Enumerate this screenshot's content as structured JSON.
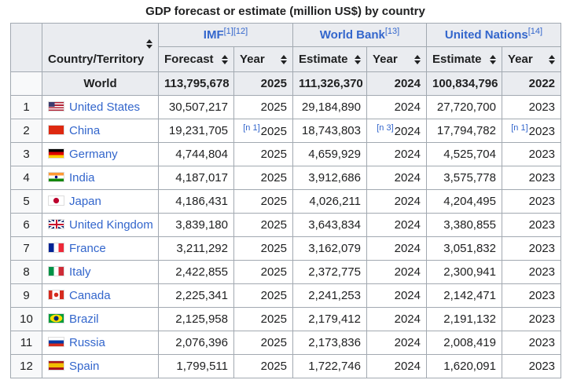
{
  "caption": "GDP forecast or estimate (million US$) by country",
  "header": {
    "country": "Country/Territory",
    "groups": [
      {
        "label": "IMF",
        "refs": "[1][12]"
      },
      {
        "label": "World Bank",
        "refs": "[13]"
      },
      {
        "label": "United Nations",
        "refs": "[14]"
      }
    ],
    "sub": [
      "Forecast",
      "Year",
      "Estimate",
      "Year",
      "Estimate",
      "Year"
    ]
  },
  "world": {
    "name": "World",
    "values": [
      "113,795,678",
      "2025",
      "111,326,370",
      "2024",
      "100,834,796",
      "2022"
    ]
  },
  "rows": [
    {
      "rank": 1,
      "country": "United States",
      "values": [
        "30,507,217",
        "2025",
        "29,184,890",
        "2024",
        "27,720,700",
        "2023"
      ]
    },
    {
      "rank": 2,
      "country": "China",
      "values": [
        "19,231,705",
        "2025",
        "18,743,803",
        "2024",
        "17,794,782",
        "2023"
      ],
      "notes": {
        "1": "[n 1]",
        "3": "[n 3]",
        "5": "[n 1]"
      }
    },
    {
      "rank": 3,
      "country": "Germany",
      "values": [
        "4,744,804",
        "2025",
        "4,659,929",
        "2024",
        "4,525,704",
        "2023"
      ]
    },
    {
      "rank": 4,
      "country": "India",
      "values": [
        "4,187,017",
        "2025",
        "3,912,686",
        "2024",
        "3,575,778",
        "2023"
      ]
    },
    {
      "rank": 5,
      "country": "Japan",
      "values": [
        "4,186,431",
        "2025",
        "4,026,211",
        "2024",
        "4,204,495",
        "2023"
      ]
    },
    {
      "rank": 6,
      "country": "United Kingdom",
      "values": [
        "3,839,180",
        "2025",
        "3,643,834",
        "2024",
        "3,380,855",
        "2023"
      ]
    },
    {
      "rank": 7,
      "country": "France",
      "values": [
        "3,211,292",
        "2025",
        "3,162,079",
        "2024",
        "3,051,832",
        "2023"
      ]
    },
    {
      "rank": 8,
      "country": "Italy",
      "values": [
        "2,422,855",
        "2025",
        "2,372,775",
        "2024",
        "2,300,941",
        "2023"
      ]
    },
    {
      "rank": 9,
      "country": "Canada",
      "values": [
        "2,225,341",
        "2025",
        "2,241,253",
        "2024",
        "2,142,471",
        "2023"
      ]
    },
    {
      "rank": 10,
      "country": "Brazil",
      "values": [
        "2,125,958",
        "2025",
        "2,179,412",
        "2024",
        "2,191,132",
        "2023"
      ]
    },
    {
      "rank": 11,
      "country": "Russia",
      "values": [
        "2,076,396",
        "2025",
        "2,173,836",
        "2024",
        "2,008,419",
        "2023"
      ]
    },
    {
      "rank": 12,
      "country": "Spain",
      "values": [
        "1,799,511",
        "2025",
        "1,722,746",
        "2024",
        "1,620,091",
        "2023"
      ]
    }
  ]
}
